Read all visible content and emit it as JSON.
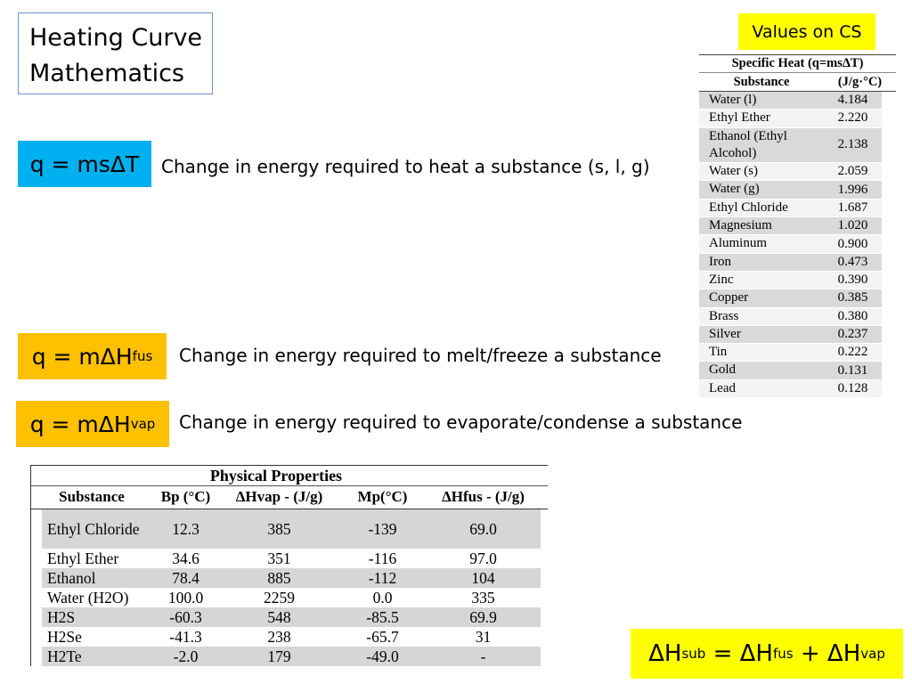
{
  "title": {
    "line1": "Heating Curve",
    "line2": "Mathematics"
  },
  "cs_note": "Values on CS",
  "equations": {
    "heat": {
      "text": "q = msΔT",
      "description": "Change in energy required to heat a substance (s, l, g)"
    },
    "fusion": {
      "prefix": "q = mΔH",
      "subscript": "fus",
      "description": "Change in energy required to melt/freeze a substance"
    },
    "vaporization": {
      "prefix": "q = mΔH",
      "subscript": "vap",
      "description": "Change in energy required to evaporate/condense a substance"
    },
    "sublimation": {
      "a": "ΔH",
      "a_sub": "sub",
      "eq": " = ΔH",
      "b_sub": "fus",
      "plus": " + ΔH",
      "c_sub": "vap"
    }
  },
  "specific_heat_table": {
    "title": "Specific Heat (q=msΔT)",
    "headers": [
      "Substance",
      "(J/g·°C)"
    ],
    "rows": [
      [
        "Water (l)",
        "4.184"
      ],
      [
        "Ethyl Ether",
        "2.220"
      ],
      [
        "Ethanol (Ethyl Alcohol)",
        "2.138"
      ],
      [
        "Water (s)",
        "2.059"
      ],
      [
        "Water (g)",
        "1.996"
      ],
      [
        "Ethyl Chloride",
        "1.687"
      ],
      [
        "Magnesium",
        "1.020"
      ],
      [
        "Aluminum",
        "0.900"
      ],
      [
        "Iron",
        "0.473"
      ],
      [
        "Zinc",
        "0.390"
      ],
      [
        "Copper",
        "0.385"
      ],
      [
        "Brass",
        "0.380"
      ],
      [
        "Silver",
        "0.237"
      ],
      [
        "Tin",
        "0.222"
      ],
      [
        "Gold",
        "0.131"
      ],
      [
        "Lead",
        "0.128"
      ]
    ]
  },
  "physical_properties_table": {
    "title": "Physical Properties",
    "headers": [
      "Substance",
      "Bp (°C)",
      "ΔHvap - (J/g)",
      "Mp(°C)",
      "ΔHfus - (J/g)"
    ],
    "rows": [
      [
        "Ethyl Chloride",
        "12.3",
        "385",
        "-139",
        "69.0"
      ],
      [
        "Ethyl Ether",
        "34.6",
        "351",
        "-116",
        "97.0"
      ],
      [
        "Ethanol",
        "78.4",
        "885",
        "-112",
        "104"
      ],
      [
        "Water (H2O)",
        "100.0",
        "2259",
        "0.0",
        "335"
      ],
      [
        "H2S",
        "-60.3",
        "548",
        "-85.5",
        "69.9"
      ],
      [
        "H2Se",
        "-41.3",
        "238",
        "-65.7",
        "31"
      ],
      [
        "H2Te",
        "-2.0",
        "179",
        "-49.0",
        "-"
      ]
    ]
  },
  "colors": {
    "heat_box": "#00b0f0",
    "fus_vap_box": "#ffc000",
    "highlight": "#ffff00",
    "title_border": "#6f8fcf"
  }
}
